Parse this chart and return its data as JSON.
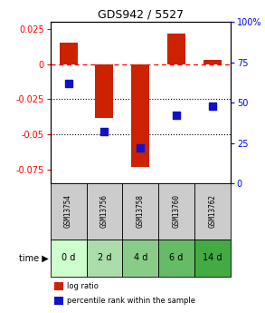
{
  "title": "GDS942 / 5527",
  "samples": [
    "GSM13754",
    "GSM13756",
    "GSM13758",
    "GSM13760",
    "GSM13762"
  ],
  "time_labels": [
    "0 d",
    "2 d",
    "4 d",
    "6 d",
    "14 d"
  ],
  "log_ratios": [
    0.015,
    -0.038,
    -0.073,
    0.022,
    0.003
  ],
  "percentile_ranks_pct": [
    62,
    32,
    22,
    42,
    48
  ],
  "ylim_left": [
    -0.085,
    0.03
  ],
  "ylim_right": [
    0,
    100
  ],
  "left_ticks": [
    0.025,
    0.0,
    -0.025,
    -0.05,
    -0.075
  ],
  "right_ticks": [
    100,
    75,
    50,
    25,
    0
  ],
  "bar_color": "#cc2200",
  "dot_color": "#1111cc",
  "grid_dotted": [
    -0.025,
    -0.05
  ],
  "sample_bg_color": "#cccccc",
  "time_bg_colors": [
    "#ccffcc",
    "#aaddaa",
    "#88cc88",
    "#66bb66",
    "#44aa44"
  ],
  "bar_width": 0.5,
  "dot_size": 40,
  "title_fontsize": 9,
  "tick_fontsize": 7,
  "sample_fontsize": 5.5,
  "time_fontsize": 7,
  "legend_fontsize": 6
}
